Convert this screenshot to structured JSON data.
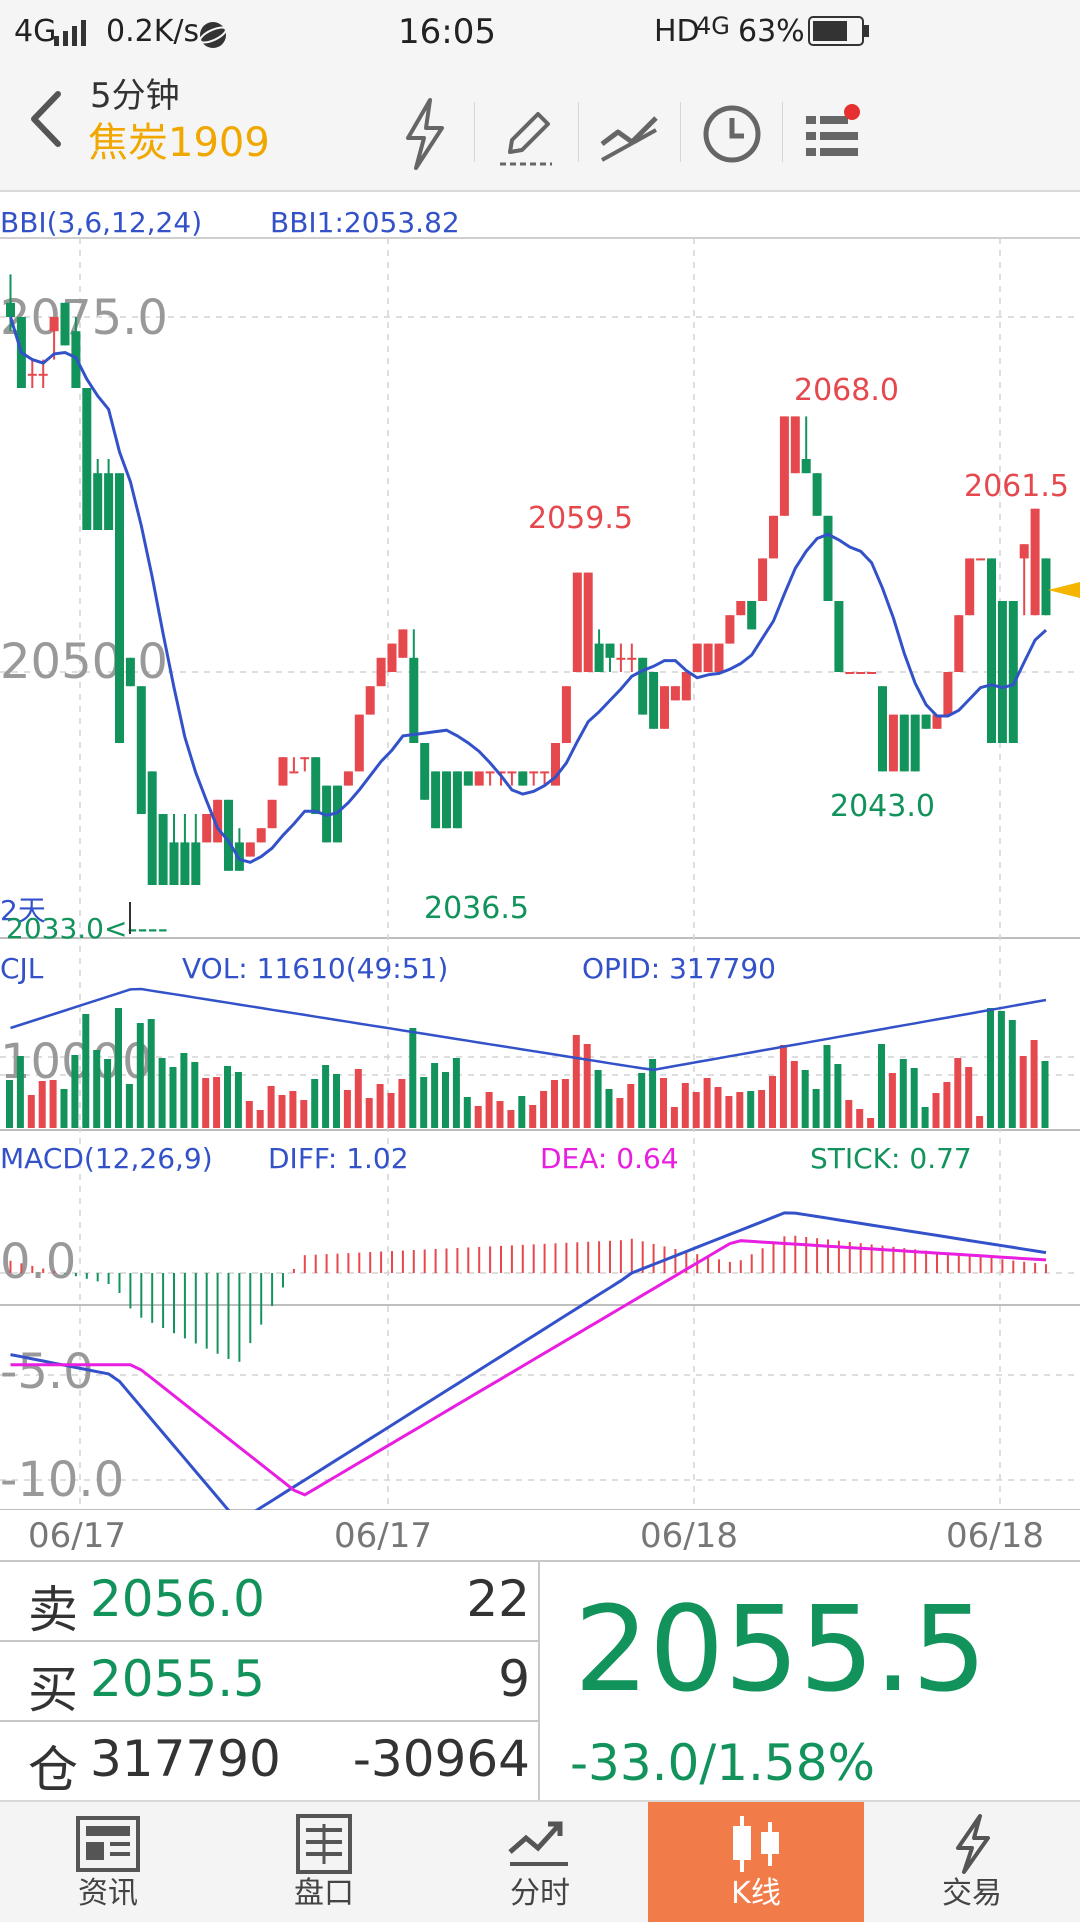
{
  "status_bar": {
    "network": "4G",
    "speed": "0.2K/s",
    "time": "16:05",
    "hd": "HD",
    "network_right": "4G",
    "battery": "63%"
  },
  "header": {
    "period": "5分钟",
    "symbol": "焦炭1909",
    "icons": [
      "lightning-icon",
      "draw-pen-icon",
      "trendline-icon",
      "clock-icon",
      "menu-icon"
    ]
  },
  "colors": {
    "up": "#e5484d",
    "down": "#11935b",
    "bbi": "#3352c9",
    "dea": "#e81ee0",
    "accent": "#f27c49",
    "symbol": "#f0a800"
  },
  "kline": {
    "indicator": "BBI(3,6,12,24)",
    "bbi1": "BBI1:2053.82",
    "y_labels": [
      "2075.0",
      "2050.0"
    ],
    "low_marker": "2033.0<----",
    "period_tag": "2天",
    "annotations": [
      "2068.0",
      "2059.5",
      "2061.5",
      "2043.0",
      "2036.5"
    ]
  },
  "volume": {
    "label": "CJL",
    "vol": "VOL: 11610(49:51)",
    "opid": "OPID: 317790",
    "y_label": "10000"
  },
  "macd": {
    "label": "MACD(12,26,9)",
    "diff": "DIFF: 1.02",
    "dea": "DEA: 0.64",
    "stick": "STICK: 0.77",
    "y_labels": [
      "0.0",
      "-5.0",
      "-10.0"
    ]
  },
  "x_axis": [
    "06/17",
    "06/17",
    "06/18",
    "06/18"
  ],
  "quote": {
    "sell_label": "卖",
    "sell_price": "2056.0",
    "sell_qty": "22",
    "buy_label": "买",
    "buy_price": "2055.5",
    "buy_qty": "9",
    "pos_label": "仓",
    "open_interest": "317790",
    "oi_change": "-30964",
    "last_price": "2055.5",
    "change": "-33.0/1.58%"
  },
  "tabs": [
    {
      "label": "资讯",
      "icon": "news-icon"
    },
    {
      "label": "盘口",
      "icon": "orderbook-icon"
    },
    {
      "label": "分时",
      "icon": "timeshare-icon"
    },
    {
      "label": "K线",
      "icon": "candlestick-icon",
      "active": true
    },
    {
      "label": "交易",
      "icon": "trade-icon"
    }
  ],
  "chart_data": {
    "type": "candlestick",
    "price_axis": {
      "labels": [
        2075.0,
        2050.0
      ]
    },
    "x_labels": [
      "06/17",
      "06/17",
      "06/18",
      "06/18"
    ],
    "candles": [
      [
        2076,
        2078,
        2074,
        2075
      ],
      [
        2075,
        2075,
        2070,
        2070
      ],
      [
        2071,
        2072,
        2070,
        2071
      ],
      [
        2071,
        2072,
        2070,
        2071
      ],
      [
        2074,
        2075,
        2072,
        2075
      ],
      [
        2076,
        2076,
        2073,
        2073
      ],
      [
        2074,
        2075,
        2070,
        2070
      ],
      [
        2070,
        2070,
        2060,
        2060
      ],
      [
        2064,
        2065,
        2060,
        2060
      ],
      [
        2064,
        2065,
        2060,
        2060
      ],
      [
        2064,
        2064,
        2045,
        2045
      ],
      [
        2051,
        2051,
        2049,
        2049
      ],
      [
        2049,
        2049,
        2040,
        2040
      ],
      [
        2043,
        2043,
        2035,
        2035
      ],
      [
        2040,
        2040,
        2035,
        2035
      ],
      [
        2038,
        2040,
        2035,
        2035
      ],
      [
        2038,
        2040,
        2035,
        2035
      ],
      [
        2038,
        2040,
        2035,
        2035
      ],
      [
        2038,
        2040,
        2038,
        2040
      ],
      [
        2038,
        2041,
        2038,
        2041
      ],
      [
        2041,
        2041,
        2036,
        2036
      ],
      [
        2038,
        2039,
        2036,
        2036
      ],
      [
        2037,
        2038,
        2037,
        2038
      ],
      [
        2038,
        2039,
        2038,
        2039
      ],
      [
        2039,
        2041,
        2039,
        2041
      ],
      [
        2042,
        2044,
        2042,
        2044
      ],
      [
        2043,
        2044,
        2043,
        2043
      ],
      [
        2044,
        2044,
        2043,
        2044
      ],
      [
        2044,
        2044,
        2040,
        2040
      ],
      [
        2042,
        2042,
        2038,
        2038
      ],
      [
        2042,
        2042,
        2038,
        2038
      ],
      [
        2042,
        2043,
        2042,
        2043
      ],
      [
        2043,
        2047,
        2043,
        2047
      ],
      [
        2047,
        2049,
        2047,
        2049
      ],
      [
        2049,
        2051,
        2049,
        2051
      ],
      [
        2050,
        2052,
        2050,
        2052
      ],
      [
        2051,
        2053,
        2051,
        2053
      ],
      [
        2051,
        2053,
        2045,
        2045
      ],
      [
        2045,
        2045,
        2041,
        2041
      ],
      [
        2043,
        2043,
        2039,
        2039
      ],
      [
        2043,
        2043,
        2039,
        2039
      ],
      [
        2043,
        2043,
        2039,
        2039
      ],
      [
        2043,
        2043,
        2042,
        2042
      ],
      [
        2042,
        2043,
        2042,
        2043
      ],
      [
        2043,
        2043,
        2042,
        2043
      ],
      [
        2043,
        2043,
        2042,
        2043
      ],
      [
        2043,
        2043,
        2042,
        2043
      ],
      [
        2043,
        2043,
        2042,
        2042
      ],
      [
        2043,
        2043,
        2042,
        2043
      ],
      [
        2043,
        2043,
        2042,
        2043
      ],
      [
        2042,
        2045,
        2042,
        2045
      ],
      [
        2045,
        2049,
        2045,
        2049
      ],
      [
        2050,
        2057,
        2050,
        2057
      ],
      [
        2050,
        2057,
        2050,
        2057
      ],
      [
        2052,
        2053,
        2050,
        2050
      ],
      [
        2052,
        2052,
        2050,
        2051
      ],
      [
        2051,
        2052,
        2050,
        2051
      ],
      [
        2051,
        2052,
        2050,
        2051
      ],
      [
        2051,
        2051,
        2047,
        2047
      ],
      [
        2050,
        2050,
        2046,
        2046
      ],
      [
        2046,
        2049,
        2046,
        2049
      ],
      [
        2048,
        2049,
        2048,
        2049
      ],
      [
        2048,
        2050,
        2048,
        2050
      ],
      [
        2050,
        2052,
        2050,
        2052
      ],
      [
        2050,
        2052,
        2050,
        2052
      ],
      [
        2050,
        2052,
        2050,
        2052
      ],
      [
        2052,
        2054,
        2052,
        2054
      ],
      [
        2054,
        2055,
        2054,
        2055
      ],
      [
        2055,
        2055,
        2053,
        2053
      ],
      [
        2055,
        2058,
        2055,
        2058
      ],
      [
        2058,
        2061,
        2058,
        2061
      ],
      [
        2061,
        2068,
        2061,
        2068
      ],
      [
        2064,
        2068,
        2064,
        2068
      ],
      [
        2065,
        2068,
        2064,
        2064
      ],
      [
        2064,
        2064,
        2061,
        2061
      ],
      [
        2061,
        2061,
        2055,
        2055
      ],
      [
        2055,
        2055,
        2050,
        2050
      ],
      [
        2050,
        2050,
        2050,
        2050
      ],
      [
        2050,
        2050,
        2050,
        2050
      ],
      [
        2050,
        2050,
        2050,
        2050
      ],
      [
        2049,
        2049,
        2043,
        2043
      ],
      [
        2043,
        2047,
        2043,
        2047
      ],
      [
        2047,
        2047,
        2043,
        2043
      ],
      [
        2047,
        2047,
        2043,
        2043
      ],
      [
        2047,
        2047,
        2046,
        2046
      ],
      [
        2046,
        2047,
        2046,
        2047
      ],
      [
        2047,
        2050,
        2047,
        2050
      ],
      [
        2050,
        2054,
        2050,
        2054
      ],
      [
        2054,
        2058,
        2054,
        2058
      ],
      [
        2058,
        2058,
        2058,
        2058
      ],
      [
        2058,
        2058,
        2045,
        2045
      ],
      [
        2055,
        2055,
        2045,
        2045
      ],
      [
        2055,
        2055,
        2045,
        2045
      ],
      [
        2058,
        2059,
        2054,
        2059
      ],
      [
        2054,
        2061.5,
        2054,
        2061.5
      ],
      [
        2058,
        2058,
        2054,
        2054
      ]
    ],
    "volume_axis": {
      "label": 10000
    },
    "macd_axis": {
      "labels": [
        0.0,
        -5.0,
        -10.0
      ]
    },
    "values": {
      "bbi1": 2053.82,
      "vol": 11610,
      "opid": 317790,
      "diff": 1.02,
      "dea": 0.64,
      "stick": 0.77
    }
  }
}
